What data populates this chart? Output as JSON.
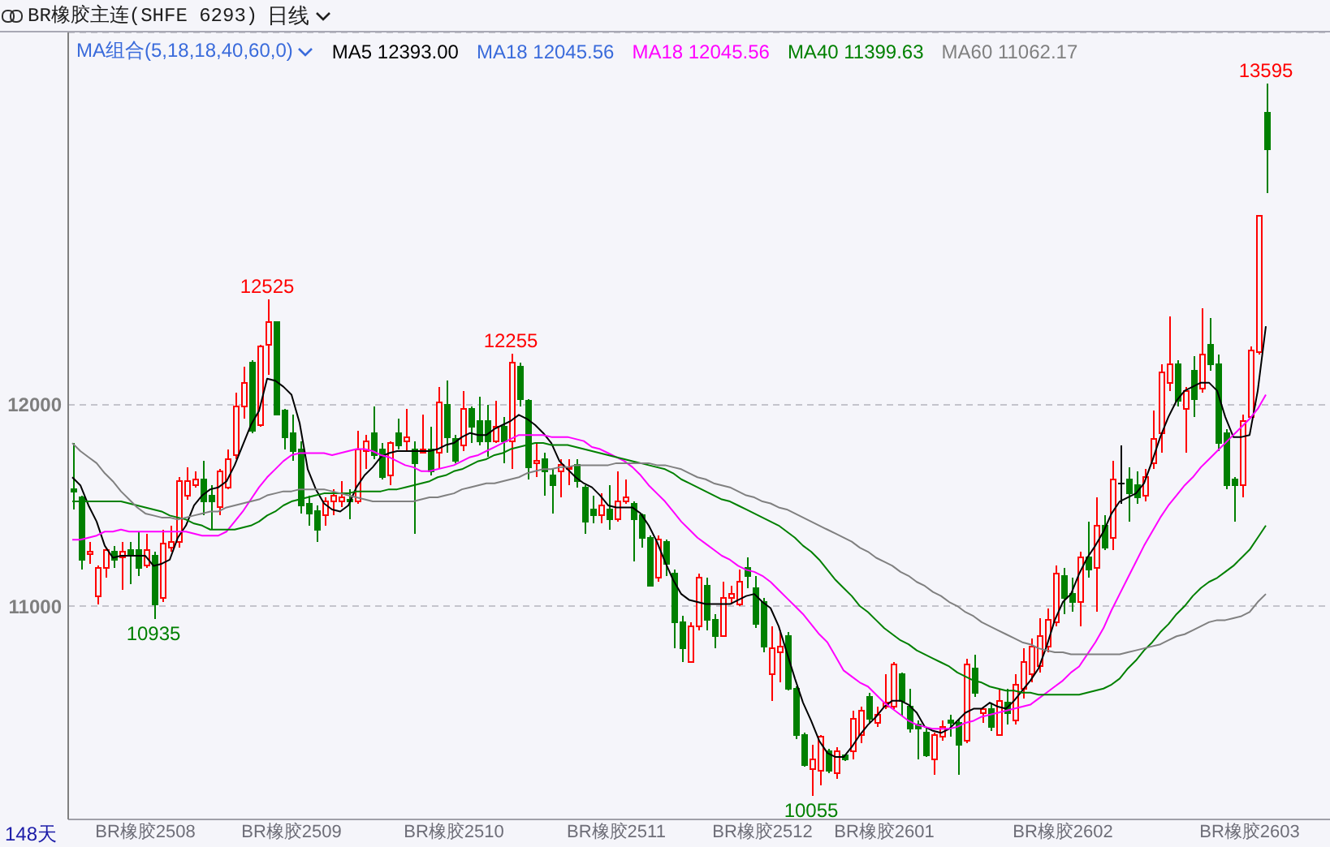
{
  "chart_data": {
    "type": "candlestick",
    "title": "BR橡胶主连(SHFE 6293)",
    "subtitle": "日线",
    "legend_title": "MA组合(5,18,18,40,60,0)",
    "categories": [
      null,
      null,
      null,
      null,
      null,
      null,
      null,
      null,
      null,
      "BR橡胶2508",
      null,
      null,
      null,
      null,
      null,
      null,
      null,
      null,
      null,
      null,
      null,
      null,
      null,
      null,
      null,
      null,
      null,
      "BR橡胶2509",
      null,
      null,
      null,
      null,
      null,
      null,
      null,
      null,
      null,
      null,
      null,
      null,
      null,
      null,
      null,
      null,
      null,
      null,
      null,
      "BR橡胶2510",
      null,
      null,
      null,
      null,
      null,
      null,
      null,
      null,
      null,
      null,
      null,
      null,
      null,
      null,
      null,
      null,
      null,
      null,
      null,
      "BR橡胶2511",
      null,
      null,
      null,
      null,
      null,
      null,
      null,
      null,
      null,
      null,
      null,
      null,
      null,
      null,
      null,
      null,
      null,
      "BR橡胶2512",
      null,
      null,
      null,
      null,
      null,
      null,
      null,
      null,
      null,
      null,
      null,
      null,
      null,
      null,
      "BR橡胶2601",
      null,
      null,
      null,
      null,
      null,
      null,
      null,
      null,
      null,
      null,
      null,
      null,
      null,
      null,
      null,
      null,
      null,
      null,
      null,
      null,
      null,
      "BR橡胶2602",
      null,
      null,
      null,
      null,
      null,
      null,
      null,
      null,
      null,
      null,
      null,
      null,
      null,
      null,
      null,
      null,
      null,
      null,
      null,
      null,
      null,
      null,
      "BR橡胶2603",
      null,
      null
    ],
    "ohlc": [
      [
        11580,
        11810,
        11480,
        11570
      ],
      [
        11540,
        11550,
        11180,
        11230
      ],
      [
        11260,
        11320,
        11210,
        11270
      ],
      [
        11050,
        11200,
        11010,
        11190
      ],
      [
        11190,
        11290,
        11140,
        11280
      ],
      [
        11270,
        11300,
        11190,
        11230
      ],
      [
        11240,
        11320,
        11080,
        11270
      ],
      [
        11280,
        11320,
        11110,
        11250
      ],
      [
        11280,
        11370,
        11150,
        11190
      ],
      [
        11200,
        11360,
        11190,
        11280
      ],
      [
        11250,
        11270,
        10935,
        11010
      ],
      [
        11040,
        11380,
        11020,
        11310
      ],
      [
        11290,
        11400,
        11270,
        11320
      ],
      [
        11320,
        11640,
        11290,
        11620
      ],
      [
        11550,
        11690,
        11530,
        11620
      ],
      [
        11600,
        11670,
        11590,
        11630
      ],
      [
        11630,
        11720,
        11450,
        11520
      ],
      [
        11550,
        11600,
        11380,
        11520
      ],
      [
        11490,
        11680,
        11450,
        11670
      ],
      [
        11590,
        11780,
        11580,
        11730
      ],
      [
        11750,
        12060,
        11730,
        11990
      ],
      [
        11990,
        12190,
        11930,
        12110
      ],
      [
        12210,
        12220,
        11860,
        11870
      ],
      [
        11900,
        12300,
        11890,
        12290
      ],
      [
        12300,
        12525,
        12150,
        12410
      ],
      [
        12410,
        12410,
        11950,
        11950
      ],
      [
        11970,
        11980,
        11780,
        11840
      ],
      [
        11860,
        11950,
        11720,
        11770
      ],
      [
        11780,
        11820,
        11460,
        11500
      ],
      [
        11510,
        11550,
        11400,
        11460
      ],
      [
        11470,
        11500,
        11320,
        11380
      ],
      [
        11450,
        11540,
        11400,
        11520
      ],
      [
        11520,
        11580,
        11450,
        11550
      ],
      [
        11520,
        11620,
        11490,
        11540
      ],
      [
        11530,
        11580,
        11430,
        11520
      ],
      [
        11520,
        11870,
        11510,
        11780
      ],
      [
        11770,
        11850,
        11680,
        11820
      ],
      [
        11860,
        11990,
        11730,
        11750
      ],
      [
        11780,
        11810,
        11630,
        11640
      ],
      [
        11650,
        11820,
        11600,
        11810
      ],
      [
        11860,
        11930,
        11780,
        11800
      ],
      [
        11820,
        11980,
        11770,
        11840
      ],
      [
        11780,
        11820,
        11360,
        11710
      ],
      [
        11760,
        11950,
        11760,
        11780
      ],
      [
        11780,
        11890,
        11650,
        11670
      ],
      [
        11760,
        12090,
        11680,
        12010
      ],
      [
        12000,
        12120,
        11760,
        11840
      ],
      [
        11830,
        11850,
        11710,
        11720
      ],
      [
        11800,
        12070,
        11770,
        11980
      ],
      [
        11980,
        11990,
        11810,
        11890
      ],
      [
        11920,
        12040,
        11800,
        11820
      ],
      [
        11920,
        12000,
        11740,
        11820
      ],
      [
        11820,
        12020,
        11810,
        11890
      ],
      [
        11890,
        11940,
        11710,
        11820
      ],
      [
        11820,
        12255,
        11680,
        12210
      ],
      [
        12190,
        12210,
        11990,
        12030
      ],
      [
        12020,
        12030,
        11630,
        11690
      ],
      [
        11710,
        11810,
        11640,
        11720
      ],
      [
        11730,
        11760,
        11550,
        11670
      ],
      [
        11650,
        11680,
        11460,
        11600
      ],
      [
        11670,
        11730,
        11540,
        11700
      ],
      [
        11680,
        11730,
        11600,
        11690
      ],
      [
        11700,
        11730,
        11590,
        11620
      ],
      [
        11590,
        11600,
        11360,
        11420
      ],
      [
        11480,
        11550,
        11410,
        11450
      ],
      [
        11450,
        11560,
        11410,
        11500
      ],
      [
        11480,
        11600,
        11380,
        11430
      ],
      [
        11430,
        11670,
        11420,
        11520
      ],
      [
        11520,
        11630,
        11510,
        11540
      ],
      [
        11510,
        11520,
        11220,
        11430
      ],
      [
        11450,
        11460,
        11290,
        11340
      ],
      [
        11340,
        11350,
        11100,
        11100
      ],
      [
        11140,
        11350,
        11120,
        11330
      ],
      [
        11320,
        11330,
        11150,
        11210
      ],
      [
        11160,
        11180,
        10790,
        10920
      ],
      [
        10920,
        10950,
        10720,
        10790
      ],
      [
        10720,
        10920,
        10720,
        10900
      ],
      [
        10900,
        11160,
        10880,
        11140
      ],
      [
        11100,
        11140,
        10880,
        10930
      ],
      [
        10930,
        10960,
        10790,
        10850
      ],
      [
        10850,
        11120,
        10850,
        11040
      ],
      [
        11040,
        11100,
        11010,
        11060
      ],
      [
        11010,
        11180,
        11000,
        11120
      ],
      [
        11190,
        11240,
        11090,
        11150
      ],
      [
        11090,
        11150,
        10890,
        10910
      ],
      [
        11020,
        11040,
        10770,
        10800
      ],
      [
        10660,
        10900,
        10530,
        10790
      ],
      [
        10770,
        10880,
        10620,
        10800
      ],
      [
        10850,
        10870,
        10580,
        10590
      ],
      [
        10590,
        10600,
        10340,
        10360
      ],
      [
        10360,
        10370,
        10200,
        10210
      ],
      [
        10190,
        10310,
        10055,
        10240
      ],
      [
        10180,
        10360,
        10110,
        10350
      ],
      [
        10280,
        10290,
        10170,
        10180
      ],
      [
        10170,
        10300,
        10140,
        10280
      ],
      [
        10260,
        10260,
        10230,
        10240
      ],
      [
        10280,
        10480,
        10240,
        10440
      ],
      [
        10360,
        10500,
        10320,
        10480
      ],
      [
        10550,
        10570,
        10420,
        10440
      ],
      [
        10420,
        10500,
        10400,
        10460
      ],
      [
        10500,
        10660,
        10490,
        10520
      ],
      [
        10500,
        10720,
        10490,
        10710
      ],
      [
        10660,
        10670,
        10450,
        10530
      ],
      [
        10500,
        10590,
        10370,
        10390
      ],
      [
        10410,
        10430,
        10240,
        10390
      ],
      [
        10370,
        10390,
        10250,
        10260
      ],
      [
        10240,
        10370,
        10160,
        10360
      ],
      [
        10350,
        10430,
        10330,
        10400
      ],
      [
        10430,
        10460,
        10350,
        10420
      ],
      [
        10420,
        10440,
        10160,
        10310
      ],
      [
        10330,
        10740,
        10320,
        10710
      ],
      [
        10690,
        10760,
        10550,
        10570
      ],
      [
        10470,
        10500,
        10420,
        10490
      ],
      [
        10490,
        10520,
        10380,
        10400
      ],
      [
        10360,
        10590,
        10360,
        10530
      ],
      [
        10520,
        10590,
        10410,
        10470
      ],
      [
        10430,
        10660,
        10410,
        10610
      ],
      [
        10590,
        10790,
        10540,
        10720
      ],
      [
        10660,
        10840,
        10620,
        10800
      ],
      [
        10700,
        10940,
        10670,
        10850
      ],
      [
        10800,
        10990,
        10770,
        10930
      ],
      [
        10920,
        11200,
        10900,
        11160
      ],
      [
        11150,
        11190,
        10960,
        11040
      ],
      [
        11060,
        11140,
        10970,
        11020
      ],
      [
        11020,
        11270,
        10900,
        11240
      ],
      [
        11240,
        11420,
        11140,
        11180
      ],
      [
        11190,
        11540,
        10970,
        11400
      ],
      [
        11400,
        11450,
        11280,
        11290
      ],
      [
        11340,
        11720,
        11280,
        11630
      ],
      [
        11610,
        11800,
        11510,
        11610
      ],
      [
        11630,
        11690,
        11420,
        11560
      ],
      [
        11600,
        11670,
        11510,
        11540
      ],
      [
        11550,
        11680,
        11520,
        11640
      ],
      [
        11710,
        11970,
        11680,
        11830
      ],
      [
        11860,
        12200,
        11760,
        12160
      ],
      [
        12110,
        12440,
        12070,
        12200
      ],
      [
        12200,
        12220,
        11990,
        12020
      ],
      [
        11980,
        12090,
        11760,
        12070
      ],
      [
        12170,
        12240,
        11940,
        12030
      ],
      [
        12080,
        12480,
        12060,
        12250
      ],
      [
        12300,
        12430,
        12170,
        12200
      ],
      [
        12200,
        12250,
        11770,
        11810
      ],
      [
        11860,
        11880,
        11580,
        11600
      ],
      [
        11630,
        11640,
        11420,
        11600
      ],
      [
        11600,
        11950,
        11540,
        11920
      ],
      [
        11940,
        12290,
        11940,
        12270
      ],
      [
        12260,
        12940,
        12250,
        12940
      ],
      [
        13450,
        13595,
        13050,
        13270
      ]
    ],
    "colors": [
      "#008000",
      "#008000",
      "#ff0000",
      "#ff0000",
      "#ff0000",
      "#008000",
      "#ff0000",
      "#008000",
      "#008000",
      "#ff0000",
      "#008000",
      "#ff0000",
      "#ff0000",
      "#ff0000",
      "#ff0000",
      "#ff0000",
      "#008000",
      "#008000",
      "#ff0000",
      "#ff0000",
      "#ff0000",
      "#ff0000",
      "#008000",
      "#ff0000",
      "#ff0000",
      "#008000",
      "#008000",
      "#008000",
      "#008000",
      "#008000",
      "#008000",
      "#ff0000",
      "#ff0000",
      "#ff0000",
      "#008000",
      "#ff0000",
      "#ff0000",
      "#008000",
      "#008000",
      "#ff0000",
      "#008000",
      "#ff0000",
      "#008000",
      "#ff0000",
      "#008000",
      "#ff0000",
      "#008000",
      "#008000",
      "#ff0000",
      "#008000",
      "#008000",
      "#008000",
      "#ff0000",
      "#008000",
      "#ff0000",
      "#008000",
      "#008000",
      "#ff0000",
      "#008000",
      "#008000",
      "#ff0000",
      "#ff0000",
      "#008000",
      "#008000",
      "#008000",
      "#ff0000",
      "#008000",
      "#ff0000",
      "#ff0000",
      "#008000",
      "#008000",
      "#008000",
      "#ff0000",
      "#008000",
      "#008000",
      "#008000",
      "#ff0000",
      "#ff0000",
      "#008000",
      "#008000",
      "#ff0000",
      "#ff0000",
      "#ff0000",
      "#008000",
      "#008000",
      "#008000",
      "#ff0000",
      "#ff0000",
      "#008000",
      "#008000",
      "#008000",
      "#ff0000",
      "#ff0000",
      "#008000",
      "#ff0000",
      "#008000",
      "#ff0000",
      "#ff0000",
      "#008000",
      "#ff0000",
      "#ff0000",
      "#ff0000",
      "#008000",
      "#008000",
      "#008000",
      "#008000",
      "#ff0000",
      "#ff0000",
      "#008000",
      "#008000",
      "#ff0000",
      "#008000",
      "#ff0000",
      "#008000",
      "#ff0000",
      "#008000",
      "#ff0000",
      "#ff0000",
      "#ff0000",
      "#ff0000",
      "#ff0000",
      "#ff0000",
      "#008000",
      "#008000",
      "#ff0000",
      "#008000",
      "#ff0000",
      "#008000",
      "#ff0000",
      "#000000",
      "#008000",
      "#008000",
      "#ff0000",
      "#ff0000",
      "#ff0000",
      "#ff0000",
      "#008000",
      "#ff0000",
      "#008000",
      "#ff0000",
      "#008000",
      "#008000",
      "#008000",
      "#008000",
      "#ff0000",
      "#ff0000",
      "#ff0000",
      "#008000"
    ],
    "series": [
      {
        "type": "line",
        "name": "MA5 12393.00",
        "color": "#000000",
        "values": [
          11640,
          11600,
          11500,
          11420,
          11300,
          11240,
          11250,
          11250,
          11250,
          11250,
          11200,
          11210,
          11230,
          11340,
          11400,
          11500,
          11550,
          11580,
          11590,
          11620,
          11700,
          11800,
          11900,
          11970,
          12130,
          12120,
          12090,
          12050,
          11910,
          11680,
          11580,
          11510,
          11480,
          11470,
          11500,
          11590,
          11650,
          11690,
          11740,
          11760,
          11770,
          11770,
          11770,
          11770,
          11770,
          11780,
          11800,
          11810,
          11840,
          11860,
          11850,
          11850,
          11880,
          11900,
          11920,
          11950,
          11930,
          11900,
          11860,
          11810,
          11720,
          11680,
          11640,
          11610,
          11590,
          11550,
          11500,
          11490,
          11490,
          11490,
          11460,
          11400,
          11320,
          11220,
          11130,
          11060,
          11030,
          11020,
          11010,
          11010,
          11010,
          11010,
          11030,
          11050,
          11060,
          11020,
          10990,
          10900,
          10770,
          10640,
          10520,
          10430,
          10330,
          10270,
          10250,
          10250,
          10300,
          10360,
          10410,
          10450,
          10500,
          10530,
          10530,
          10510,
          10470,
          10400,
          10380,
          10370,
          10390,
          10430,
          10470,
          10490,
          10490,
          10520,
          10500,
          10490,
          10530,
          10580,
          10630,
          10690,
          10800,
          10930,
          11020,
          11060,
          11160,
          11240,
          11300,
          11370,
          11460,
          11520,
          11540,
          11560,
          11610,
          11720,
          11840,
          11940,
          12020,
          12070,
          12090,
          12110,
          12110,
          12070,
          11940,
          11840,
          11840,
          11850,
          12070,
          12390
        ]
      },
      {
        "type": "line",
        "name": "MA18 12045.56",
        "color": "#3a6bdb",
        "values": [
          null,
          null,
          null,
          null,
          null,
          null,
          null,
          null,
          null,
          null,
          null,
          null,
          null,
          null,
          null,
          null,
          null,
          null,
          null,
          null,
          null,
          null,
          null,
          null,
          null,
          null,
          null,
          null,
          null,
          null,
          null,
          null,
          null,
          null,
          null,
          null,
          null,
          null,
          null,
          null,
          null,
          null,
          null,
          null,
          null,
          null,
          null,
          null,
          null,
          null,
          null,
          null,
          null,
          null,
          null,
          null,
          null,
          null,
          null,
          null,
          null,
          null,
          null,
          null,
          null,
          null,
          null,
          null,
          null,
          null,
          null,
          null,
          null,
          null,
          null,
          null,
          null,
          null,
          null,
          null,
          null,
          null,
          null,
          null,
          null,
          null,
          null,
          null,
          null,
          null,
          null,
          null,
          null,
          null,
          null,
          null,
          null,
          null,
          null,
          null,
          null,
          null,
          null,
          null,
          null,
          null,
          null,
          null,
          null,
          null,
          null,
          null,
          null,
          null,
          null,
          null,
          null,
          null,
          null,
          null,
          null,
          null,
          null,
          null,
          null,
          null,
          null,
          null,
          null,
          null,
          null,
          null,
          null,
          null,
          null,
          null,
          null,
          null,
          null,
          null,
          null,
          null,
          null,
          null,
          null,
          null,
          null,
          null
        ]
      },
      {
        "type": "line",
        "name": "MA18 12045.56",
        "color": "#ff00ff",
        "values": [
          11330,
          11330,
          11340,
          11350,
          11370,
          11370,
          11380,
          11370,
          11370,
          11370,
          11370,
          11370,
          11370,
          11370,
          11370,
          11360,
          11350,
          11350,
          11350,
          11370,
          11420,
          11470,
          11530,
          11590,
          11640,
          11680,
          11720,
          11750,
          11760,
          11760,
          11760,
          11760,
          11750,
          11760,
          11770,
          11780,
          11780,
          11770,
          11750,
          11740,
          11720,
          11700,
          11690,
          11670,
          11670,
          11680,
          11690,
          11700,
          11720,
          11740,
          11750,
          11770,
          11790,
          11810,
          11830,
          11850,
          11850,
          11850,
          11850,
          11840,
          11840,
          11840,
          11830,
          11820,
          11790,
          11780,
          11760,
          11740,
          11720,
          11690,
          11650,
          11600,
          11560,
          11520,
          11470,
          11420,
          11380,
          11340,
          11310,
          11280,
          11250,
          11230,
          11200,
          11180,
          11170,
          11150,
          11120,
          11080,
          11040,
          11000,
          10960,
          10910,
          10860,
          10820,
          10750,
          10680,
          10650,
          10620,
          10600,
          10560,
          10520,
          10490,
          10460,
          10430,
          10410,
          10400,
          10390,
          10390,
          10390,
          10400,
          10420,
          10430,
          10450,
          10460,
          10470,
          10480,
          10490,
          10500,
          10510,
          10540,
          10570,
          10600,
          10630,
          10670,
          10700,
          10760,
          10820,
          10890,
          10980,
          11060,
          11140,
          11220,
          11300,
          11370,
          11440,
          11500,
          11550,
          11600,
          11640,
          11690,
          11730,
          11770,
          11810,
          11850,
          11890,
          11930,
          11980,
          12050
        ]
      },
      {
        "type": "line",
        "name": "MA40 11399.63",
        "color": "#008000",
        "values": [
          11520,
          11520,
          11520,
          11520,
          11520,
          11520,
          11520,
          11510,
          11500,
          11490,
          11480,
          11470,
          11450,
          11440,
          11430,
          11410,
          11400,
          11380,
          11380,
          11380,
          11380,
          11390,
          11400,
          11420,
          11450,
          11470,
          11500,
          11520,
          11530,
          11540,
          11550,
          11560,
          11560,
          11560,
          11560,
          11570,
          11570,
          11570,
          11570,
          11580,
          11580,
          11590,
          11600,
          11610,
          11620,
          11640,
          11650,
          11670,
          11680,
          11700,
          11720,
          11730,
          11750,
          11760,
          11780,
          11790,
          11800,
          11810,
          11810,
          11800,
          11800,
          11800,
          11790,
          11780,
          11770,
          11760,
          11750,
          11740,
          11730,
          11720,
          11710,
          11700,
          11690,
          11680,
          11660,
          11630,
          11610,
          11590,
          11570,
          11550,
          11530,
          11520,
          11500,
          11480,
          11460,
          11440,
          11420,
          11400,
          11370,
          11340,
          11300,
          11270,
          11230,
          11180,
          11130,
          11090,
          11050,
          11000,
          10970,
          10930,
          10890,
          10860,
          10830,
          10810,
          10780,
          10760,
          10740,
          10720,
          10700,
          10670,
          10650,
          10630,
          10620,
          10600,
          10590,
          10580,
          10580,
          10570,
          10570,
          10560,
          10560,
          10560,
          10560,
          10560,
          10560,
          10570,
          10580,
          10590,
          10610,
          10640,
          10690,
          10730,
          10780,
          10820,
          10870,
          10910,
          10960,
          11000,
          11050,
          11090,
          11120,
          11140,
          11170,
          11200,
          11240,
          11280,
          11340,
          11400
        ]
      },
      {
        "type": "line",
        "name": "MA60 11062.17",
        "color": "#808080",
        "values": [
          11810,
          11770,
          11740,
          11710,
          11660,
          11620,
          11570,
          11530,
          11490,
          11460,
          11450,
          11440,
          11440,
          11430,
          11440,
          11450,
          11460,
          11470,
          11470,
          11490,
          11500,
          11510,
          11520,
          11530,
          11550,
          11560,
          11570,
          11570,
          11580,
          11580,
          11580,
          11580,
          11570,
          11560,
          11550,
          11540,
          11530,
          11520,
          11520,
          11520,
          11520,
          11520,
          11520,
          11530,
          11540,
          11540,
          11550,
          11560,
          11580,
          11590,
          11600,
          11610,
          11610,
          11620,
          11630,
          11640,
          11660,
          11670,
          11680,
          11680,
          11690,
          11690,
          11700,
          11700,
          11700,
          11700,
          11700,
          11710,
          11710,
          11710,
          11710,
          11710,
          11700,
          11700,
          11690,
          11680,
          11660,
          11640,
          11630,
          11610,
          11600,
          11590,
          11570,
          11550,
          11540,
          11520,
          11510,
          11490,
          11480,
          11460,
          11440,
          11420,
          11400,
          11380,
          11360,
          11340,
          11320,
          11290,
          11270,
          11240,
          11220,
          11200,
          11170,
          11150,
          11120,
          11100,
          11070,
          11050,
          11020,
          11000,
          10970,
          10950,
          10920,
          10900,
          10880,
          10860,
          10840,
          10820,
          10810,
          10790,
          10780,
          10770,
          10770,
          10760,
          10760,
          10760,
          10760,
          10760,
          10760,
          10760,
          10770,
          10780,
          10790,
          10800,
          10810,
          10830,
          10850,
          10860,
          10880,
          10900,
          10920,
          10930,
          10930,
          10940,
          10950,
          10970,
          11020,
          11060
        ]
      }
    ],
    "ylim": [
      9940,
      13850
    ],
    "yticks": [
      11000,
      12000
    ],
    "grid": "y",
    "legend": "top",
    "annotations": [
      "148天",
      {
        "text": "12525",
        "y": 12525
      },
      {
        "text": "12255",
        "y": 12255
      },
      {
        "text": "13595",
        "y": 13595
      },
      {
        "text": "10935",
        "y": 10935
      },
      {
        "text": "10055",
        "y": 10055
      }
    ]
  }
}
